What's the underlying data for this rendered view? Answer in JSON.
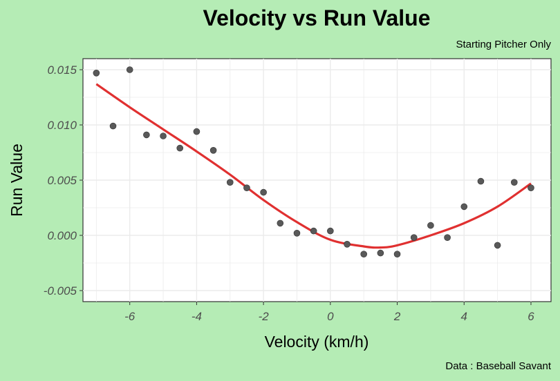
{
  "chart_data": {
    "type": "scatter",
    "title": "Velocity vs Run Value",
    "subtitle": "Starting Pitcher Only",
    "caption": "Data : Baseball Savant",
    "xlabel": "Velocity (km/h)",
    "ylabel": "Run Value",
    "xlim": [
      -7.4,
      6.6
    ],
    "ylim": [
      -0.006,
      0.016
    ],
    "x_ticks": [
      -6,
      -4,
      -2,
      0,
      2,
      4,
      6
    ],
    "x_tick_labels": [
      "-6",
      "-4",
      "-2",
      "0",
      "2",
      "4",
      "6"
    ],
    "y_ticks": [
      -0.005,
      0,
      0.005,
      0.01,
      0.015
    ],
    "y_tick_labels": [
      "-0.005",
      "0.000",
      "0.005",
      "0.010",
      "0.015"
    ],
    "grid": true,
    "points": [
      {
        "x": -7.0,
        "y": 0.0147
      },
      {
        "x": -6.5,
        "y": 0.0099
      },
      {
        "x": -6.0,
        "y": 0.015
      },
      {
        "x": -5.5,
        "y": 0.0091
      },
      {
        "x": -5.0,
        "y": 0.009
      },
      {
        "x": -4.5,
        "y": 0.0079
      },
      {
        "x": -4.0,
        "y": 0.0094
      },
      {
        "x": -3.5,
        "y": 0.0077
      },
      {
        "x": -3.0,
        "y": 0.0048
      },
      {
        "x": -2.5,
        "y": 0.0043
      },
      {
        "x": -2.0,
        "y": 0.0039
      },
      {
        "x": -1.5,
        "y": 0.0011
      },
      {
        "x": -1.0,
        "y": 0.0002
      },
      {
        "x": -0.5,
        "y": 0.0004
      },
      {
        "x": 0.0,
        "y": 0.0004
      },
      {
        "x": 0.5,
        "y": -0.0008
      },
      {
        "x": 1.0,
        "y": -0.0017
      },
      {
        "x": 1.5,
        "y": -0.0016
      },
      {
        "x": 2.0,
        "y": -0.0017
      },
      {
        "x": 2.5,
        "y": -0.0002
      },
      {
        "x": 3.0,
        "y": 0.0009
      },
      {
        "x": 3.5,
        "y": -0.0002
      },
      {
        "x": 4.0,
        "y": 0.0026
      },
      {
        "x": 4.5,
        "y": 0.0049
      },
      {
        "x": 5.0,
        "y": -0.0009
      },
      {
        "x": 5.5,
        "y": 0.0048
      },
      {
        "x": 6.0,
        "y": 0.0043
      }
    ],
    "trend": {
      "x": [
        -7.0,
        -6.0,
        -5.0,
        -4.0,
        -3.0,
        -2.0,
        -1.0,
        0.0,
        1.0,
        1.5,
        2.0,
        3.0,
        4.0,
        5.0,
        6.0
      ],
      "y": [
        0.0137,
        0.0116,
        0.0096,
        0.0076,
        0.0055,
        0.0032,
        0.0012,
        -0.0004,
        -0.001,
        -0.0011,
        -0.0009,
        0.0,
        0.0011,
        0.0026,
        0.0047
      ]
    },
    "colors": {
      "points": "#595959",
      "trend": "#e03030",
      "panel": "#ffffff",
      "grid": "#ebebeb",
      "background": "#b5ecb5"
    }
  }
}
